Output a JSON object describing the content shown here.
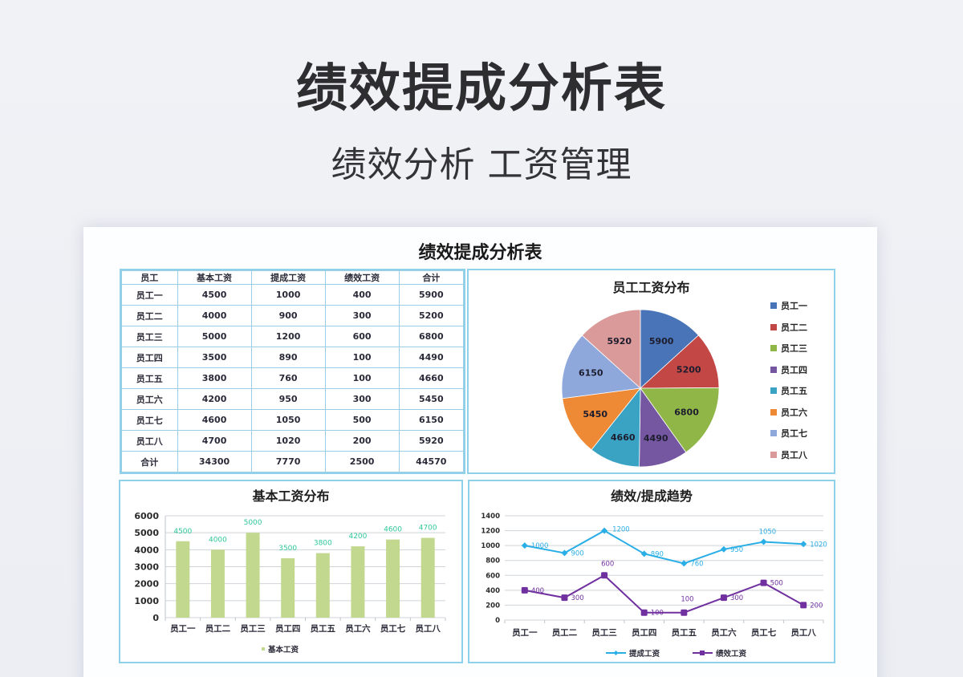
{
  "hero": {
    "title": "绩效提成分析表",
    "subtitle": "绩效分析 工资管理"
  },
  "card": {
    "title": "绩效提成分析表"
  },
  "table": {
    "headers": [
      "员工",
      "基本工资",
      "提成工资",
      "绩效工资",
      "合计"
    ],
    "rows": [
      [
        "员工一",
        "4500",
        "1000",
        "400",
        "5900"
      ],
      [
        "员工二",
        "4000",
        "900",
        "300",
        "5200"
      ],
      [
        "员工三",
        "5000",
        "1200",
        "600",
        "6800"
      ],
      [
        "员工四",
        "3500",
        "890",
        "100",
        "4490"
      ],
      [
        "员工五",
        "3800",
        "760",
        "100",
        "4660"
      ],
      [
        "员工六",
        "4200",
        "950",
        "300",
        "5450"
      ],
      [
        "员工七",
        "4600",
        "1050",
        "500",
        "6150"
      ],
      [
        "员工八",
        "4700",
        "1020",
        "200",
        "5920"
      ],
      [
        "合计",
        "34300",
        "7770",
        "2500",
        "44570"
      ]
    ]
  },
  "colors": {
    "panel_border": "#8fd0ea",
    "bar_fill": "#c3d88f",
    "bar_label": "#2fc79a",
    "line_commission": "#2aaee6",
    "line_performance": "#7030a0"
  },
  "chart_data": [
    {
      "type": "pie",
      "title": "员工工资分布",
      "categories": [
        "员工一",
        "员工二",
        "员工三",
        "员工四",
        "员工五",
        "员工六",
        "员工七",
        "员工八"
      ],
      "values": [
        5900,
        5200,
        6800,
        4490,
        4660,
        5450,
        6150,
        5920
      ],
      "colors": [
        "#4a74b8",
        "#c24745",
        "#90b648",
        "#7457a0",
        "#3aa3c4",
        "#ee8a35",
        "#8ea8dc",
        "#da9a9a"
      ],
      "legend_position": "right",
      "data_labels": true
    },
    {
      "type": "bar",
      "title": "基本工资分布",
      "categories": [
        "员工一",
        "员工二",
        "员工三",
        "员工四",
        "员工五",
        "员工六",
        "员工七",
        "员工八"
      ],
      "series": [
        {
          "name": "基本工资",
          "values": [
            4500,
            4000,
            5000,
            3500,
            3800,
            4200,
            4600,
            4700
          ]
        }
      ],
      "ylim": [
        0,
        6000
      ],
      "yticks": [
        0,
        1000,
        2000,
        3000,
        4000,
        5000,
        6000
      ],
      "grid": true,
      "legend_position": "bottom",
      "xlabel": "",
      "ylabel": ""
    },
    {
      "type": "line",
      "title": "绩效/提成趋势",
      "categories": [
        "员工一",
        "员工二",
        "员工三",
        "员工四",
        "员工五",
        "员工六",
        "员工七",
        "员工八"
      ],
      "series": [
        {
          "name": "提成工资",
          "values": [
            1000,
            900,
            1200,
            890,
            760,
            950,
            1050,
            1020
          ],
          "marker": "diamond"
        },
        {
          "name": "绩效工资",
          "values": [
            400,
            300,
            600,
            100,
            100,
            300,
            500,
            200
          ],
          "marker": "square"
        }
      ],
      "ylim": [
        0,
        1400
      ],
      "yticks": [
        0,
        200,
        400,
        600,
        800,
        1000,
        1200,
        1400
      ],
      "grid": true,
      "legend_position": "bottom",
      "xlabel": "",
      "ylabel": ""
    }
  ]
}
